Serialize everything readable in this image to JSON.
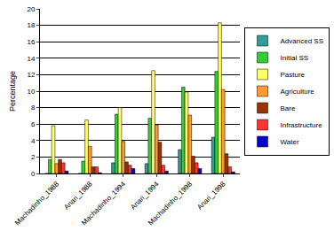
{
  "chart_data": {
    "type": "bar",
    "y_label": "Percentage",
    "categories": [
      "Machadinho_1988",
      "Anari_1988",
      "Machadinho_1994",
      "Anari_1994",
      "Machadinho_1998",
      "Anari_1998"
    ],
    "series": [
      {
        "name": "Advanced SS",
        "color": "#339999",
        "values": [
          0,
          0,
          1.3,
          1.2,
          2.9,
          4.4
        ]
      },
      {
        "name": "Initial SS",
        "color": "#33cc33",
        "values": [
          1.7,
          1.5,
          7.2,
          6.7,
          10.5,
          12.4
        ]
      },
      {
        "name": "Pasture",
        "color": "#ffff66",
        "values": [
          5.8,
          6.5,
          8.0,
          12.5,
          9.9,
          18.3
        ]
      },
      {
        "name": "Agriculture",
        "color": "#ff9933",
        "values": [
          1.2,
          3.3,
          3.9,
          5.9,
          7.1,
          10.2
        ]
      },
      {
        "name": "Bare",
        "color": "#993300",
        "values": [
          1.7,
          0.8,
          1.4,
          3.8,
          2.1,
          2.4
        ]
      },
      {
        "name": "Infrastructure",
        "color": "#ff3333",
        "values": [
          1.3,
          0.8,
          1.0,
          1.0,
          1.3,
          0.8
        ]
      },
      {
        "name": "Water",
        "color": "#0000cc",
        "values": [
          0.3,
          0.1,
          0.6,
          0.3,
          0.6,
          0.2
        ]
      }
    ],
    "ylim": [
      0,
      20
    ],
    "yticks": [
      0,
      2,
      4,
      6,
      8,
      10,
      12,
      14,
      16,
      18,
      20
    ],
    "grid": true,
    "legend": "right"
  }
}
